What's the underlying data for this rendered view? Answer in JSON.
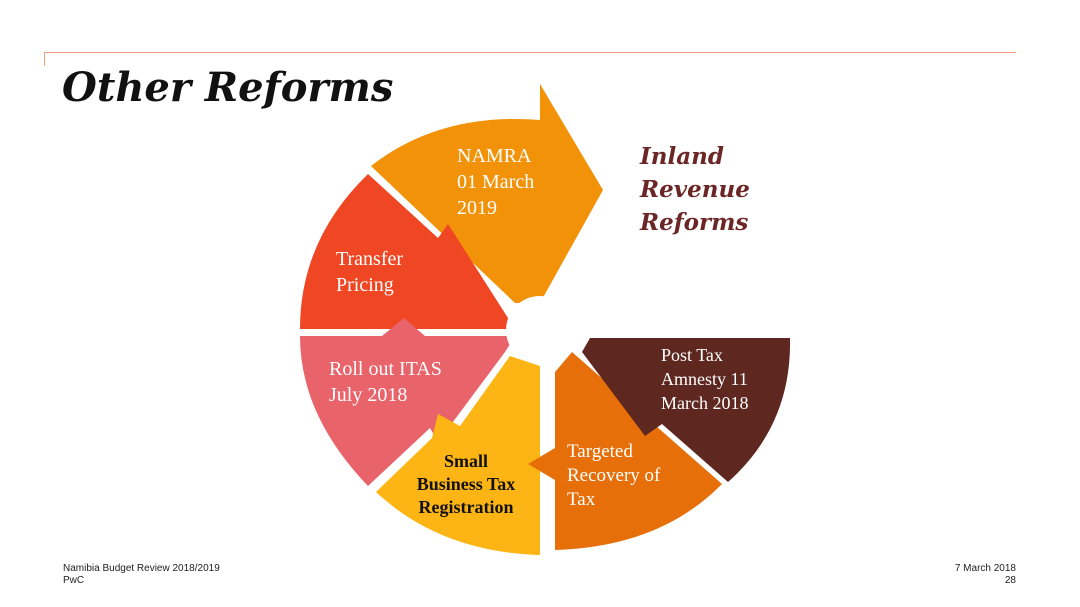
{
  "slide": {
    "title": "Other Reforms",
    "heading": "Inland\nRevenue\nReforms"
  },
  "segments": [
    {
      "label": "NAMRA\n01 March\n2019",
      "color": "#f29208"
    },
    {
      "label": "Transfer\nPricing",
      "color": "#ef4623"
    },
    {
      "label": "Roll out ITAS\nJuly 2018",
      "color": "#e8636a"
    },
    {
      "label": "Small\nBusiness Tax\nRegistration",
      "color": "#fdb515"
    },
    {
      "label": "Targeted\nRecovery of\nTax",
      "color": "#e66f0a"
    },
    {
      "label": "Post Tax\nAmnesty 11\nMarch 2018",
      "color": "#5e2720"
    }
  ],
  "footer": {
    "left_line1": "Namibia Budget Review 2018/2019",
    "left_line2": "PwC",
    "right_line1": "7 March 2018",
    "right_line2": "28"
  }
}
